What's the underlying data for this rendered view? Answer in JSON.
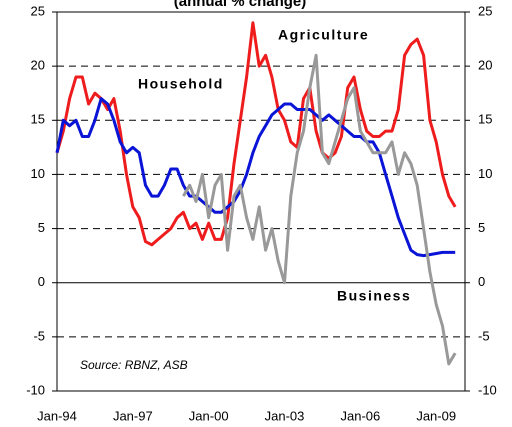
{
  "chart_data": {
    "type": "line",
    "title": "(annual % change)",
    "note": "Source: RBNZ, ASB",
    "x": [
      "Jan-94",
      "Apr-94",
      "Jul-94",
      "Oct-94",
      "Jan-95",
      "Apr-95",
      "Jul-95",
      "Oct-95",
      "Jan-96",
      "Apr-96",
      "Jul-96",
      "Oct-96",
      "Jan-97",
      "Apr-97",
      "Jul-97",
      "Oct-97",
      "Jan-98",
      "Apr-98",
      "Jul-98",
      "Oct-98",
      "Jan-99",
      "Apr-99",
      "Jul-99",
      "Oct-99",
      "Jan-00",
      "Apr-00",
      "Jul-00",
      "Oct-00",
      "Jan-01",
      "Apr-01",
      "Jul-01",
      "Oct-01",
      "Jan-02",
      "Apr-02",
      "Jul-02",
      "Oct-02",
      "Jan-03",
      "Apr-03",
      "Jul-03",
      "Oct-03",
      "Jan-04",
      "Apr-04",
      "Jul-04",
      "Oct-04",
      "Jan-05",
      "Apr-05",
      "Jul-05",
      "Oct-05",
      "Jan-06",
      "Apr-06",
      "Jul-06",
      "Oct-06",
      "Jan-07",
      "Apr-07",
      "Jul-07",
      "Oct-07",
      "Jan-08",
      "Apr-08",
      "Jul-08",
      "Oct-08",
      "Jan-09",
      "Apr-09",
      "Jul-09",
      "Oct-09"
    ],
    "xticks": [
      "Jan-94",
      "Jan-97",
      "Jan-00",
      "Jan-03",
      "Jan-06",
      "Jan-09"
    ],
    "series": [
      {
        "name": "Agriculture",
        "color": "#ee1c1c",
        "values": [
          12,
          14,
          17,
          19,
          19,
          16.5,
          17.5,
          17,
          16,
          17,
          14,
          10,
          7,
          6,
          3.8,
          3.5,
          4,
          4.5,
          5,
          6,
          6.5,
          5,
          5.5,
          4,
          5.5,
          4,
          4,
          6,
          11,
          15,
          19,
          24,
          20,
          21,
          19,
          16,
          15,
          13,
          12.5,
          17,
          18,
          14,
          12,
          11.5,
          12,
          13.5,
          18,
          19,
          16,
          14,
          13.5,
          13.5,
          14,
          14,
          16,
          21,
          22,
          22.5,
          21,
          15,
          13,
          10,
          8,
          7
        ]
      },
      {
        "name": "Household",
        "color": "#0a14d6",
        "values": [
          12,
          15,
          14.5,
          15,
          13.5,
          13.5,
          15,
          17,
          16.5,
          15,
          13,
          12,
          12.5,
          12,
          9,
          8,
          8,
          9,
          10.5,
          10.5,
          9,
          8,
          8,
          7.5,
          7,
          6.5,
          6.5,
          7,
          7.5,
          8.5,
          10,
          12,
          13.5,
          14.5,
          15.5,
          16,
          16.5,
          16.5,
          16,
          16,
          16,
          15.5,
          15,
          15.5,
          15,
          14.5,
          14,
          13.5,
          13.5,
          13,
          13,
          12,
          10,
          8,
          6,
          4.5,
          3,
          2.6,
          2.5,
          2.6,
          2.7,
          2.8,
          2.8,
          2.8
        ]
      },
      {
        "name": "Business",
        "color": "#999999",
        "values": [
          null,
          null,
          null,
          null,
          null,
          null,
          null,
          null,
          null,
          null,
          null,
          null,
          null,
          null,
          null,
          null,
          null,
          null,
          null,
          null,
          8,
          9,
          7.5,
          10,
          6,
          9,
          10,
          3,
          8,
          9,
          6,
          4,
          7,
          3,
          5,
          2,
          0,
          8,
          12,
          14,
          18,
          21,
          12,
          11,
          13,
          15,
          17,
          18,
          14,
          13,
          12,
          12,
          12,
          13,
          10,
          12,
          11,
          9,
          5,
          1,
          -2,
          -4,
          -7.5,
          -6.5
        ]
      }
    ],
    "ylim": [
      -10,
      25
    ],
    "yticks": [
      -10,
      -5,
      0,
      5,
      10,
      15,
      20,
      25
    ],
    "y2lim": [
      -10,
      25
    ],
    "y2ticks": [
      -10,
      -5,
      0,
      5,
      10,
      15,
      20,
      25
    ],
    "grid": true
  }
}
